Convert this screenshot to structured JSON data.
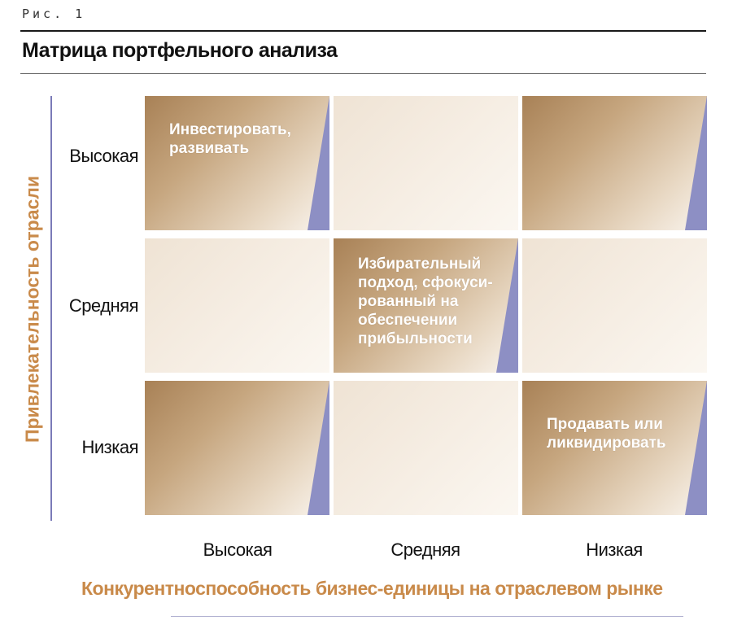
{
  "figure_label": "Рис. 1",
  "title": "Матрица портфельного анализа",
  "y_axis": {
    "title": "Привлекательность отрасли",
    "labels": [
      "Высокая",
      "Средняя",
      "Низкая"
    ]
  },
  "x_axis": {
    "title": "Конкурентноспособность бизнес-единицы на отраслевом рынке",
    "labels": [
      "Высокая",
      "Средняя",
      "Низкая"
    ]
  },
  "cells": [
    [
      {
        "text": "Инвестировать,\nразвивать",
        "shade": "dark"
      },
      {
        "text": "",
        "shade": "light"
      },
      {
        "text": "",
        "shade": "dark"
      }
    ],
    [
      {
        "text": "",
        "shade": "light"
      },
      {
        "text": "Избирательный\nподход, сфокуси-\nрованный на\nобеспечении\nприбыльности",
        "shade": "dark"
      },
      {
        "text": "",
        "shade": "light"
      }
    ],
    [
      {
        "text": "",
        "shade": "dark"
      },
      {
        "text": "",
        "shade": "light"
      },
      {
        "text": "Продавать или\nликвидировать",
        "shade": "dark"
      }
    ]
  ],
  "colors": {
    "axis_title": "#c98a4a",
    "wedge": "#8d8fc4",
    "axis_line": "#7a7ab8"
  }
}
